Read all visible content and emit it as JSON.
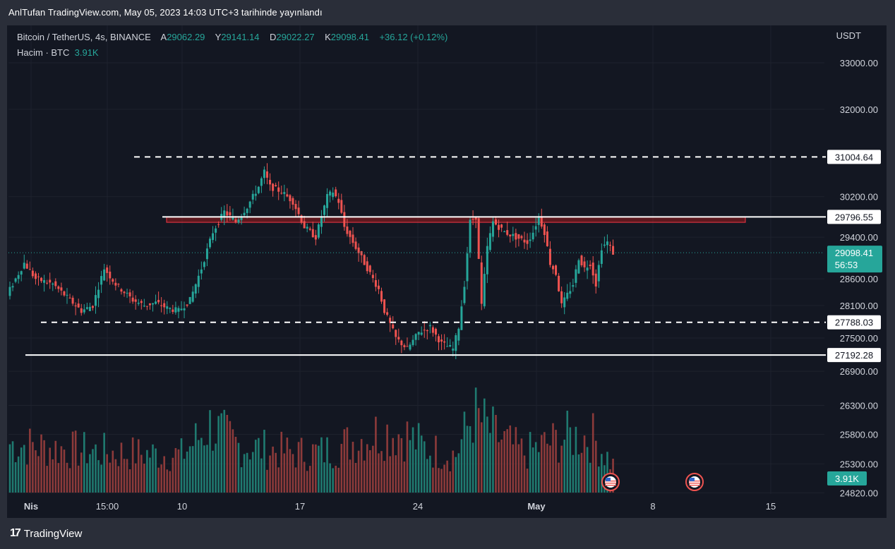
{
  "published": "AnlTufan TradingView.com, May 05, 2023 14:03 UTC+3 tarihinde yayınlandı",
  "legend": {
    "symbol": "Bitcoin / TetherUS, 4s, BINANCE",
    "open_label": "A",
    "open": "29062.29",
    "high_label": "Y",
    "high": "29141.14",
    "low_label": "D",
    "low": "29022.27",
    "close_label": "K",
    "close": "29098.41",
    "change": "+36.12 (+0.12%)",
    "volume_label": "Hacim · BTC",
    "volume": "3.91K"
  },
  "footer_brand": "TradingView",
  "footer_logo": "17",
  "colors": {
    "up": "#26a69a",
    "down": "#ef5350",
    "bg": "#131722",
    "grid": "#1e222d",
    "text": "#d1d4dc",
    "zone": "#b71c1c"
  },
  "chart_data": {
    "type": "candlestick",
    "currency": "USDT",
    "y_scale": "log",
    "ylim": [
      24820,
      33300
    ],
    "y_ticks": [
      "33000.00",
      "32000.00",
      "30200.00",
      "29400.00",
      "28600.00",
      "28100.00",
      "27500.00",
      "26900.00",
      "26300.00",
      "25800.00",
      "25300.00",
      "24820.00"
    ],
    "x_ticks": [
      "Nis",
      "15:00",
      "10",
      "17",
      "24",
      "May",
      "8",
      "15"
    ],
    "levels": [
      {
        "price": 31004.64,
        "label": "31004.64",
        "style": "dashed"
      },
      {
        "price": 29796.55,
        "label": "29796.55",
        "style": "solid"
      },
      {
        "price": 27788.03,
        "label": "27788.03",
        "style": "dashed"
      },
      {
        "price": 27192.28,
        "label": "27192.28",
        "style": "solid"
      }
    ],
    "resistance_zone": {
      "from": 29690,
      "to": 29800
    },
    "current_price": {
      "label": "29098.41",
      "countdown": "56:53"
    },
    "volume_badge": "3.91K",
    "event_icons": 2,
    "price_path": [
      [
        0,
        28300
      ],
      [
        6,
        28900
      ],
      [
        10,
        28600
      ],
      [
        16,
        28500
      ],
      [
        22,
        28200
      ],
      [
        26,
        28000
      ],
      [
        30,
        28100
      ],
      [
        34,
        28800
      ],
      [
        38,
        28500
      ],
      [
        44,
        28200
      ],
      [
        48,
        28100
      ],
      [
        52,
        28150
      ],
      [
        56,
        28050
      ],
      [
        60,
        28000
      ],
      [
        64,
        28200
      ],
      [
        68,
        28800
      ],
      [
        72,
        29500
      ],
      [
        76,
        29900
      ],
      [
        80,
        29700
      ],
      [
        84,
        30000
      ],
      [
        88,
        30400
      ],
      [
        90,
        30700
      ],
      [
        92,
        30400
      ],
      [
        96,
        30300
      ],
      [
        100,
        30100
      ],
      [
        104,
        29600
      ],
      [
        108,
        29400
      ],
      [
        112,
        30200
      ],
      [
        114,
        30300
      ],
      [
        116,
        30100
      ],
      [
        118,
        29600
      ],
      [
        122,
        29200
      ],
      [
        126,
        28800
      ],
      [
        130,
        28400
      ],
      [
        132,
        28000
      ],
      [
        136,
        27500
      ],
      [
        140,
        27300
      ],
      [
        144,
        27600
      ],
      [
        148,
        27700
      ],
      [
        152,
        27400
      ],
      [
        156,
        27300
      ],
      [
        158,
        27700
      ],
      [
        160,
        28500
      ],
      [
        162,
        29700
      ],
      [
        164,
        29800
      ],
      [
        166,
        28100
      ],
      [
        168,
        29200
      ],
      [
        170,
        29700
      ],
      [
        174,
        29500
      ],
      [
        178,
        29400
      ],
      [
        182,
        29300
      ],
      [
        184,
        29500
      ],
      [
        186,
        29800
      ],
      [
        188,
        29500
      ],
      [
        190,
        28900
      ],
      [
        192,
        28700
      ],
      [
        194,
        28100
      ],
      [
        196,
        28300
      ],
      [
        198,
        28500
      ],
      [
        200,
        29000
      ],
      [
        202,
        28800
      ],
      [
        204,
        28900
      ],
      [
        206,
        28500
      ],
      [
        208,
        29200
      ],
      [
        210,
        29300
      ],
      [
        212,
        29100
      ]
    ],
    "volume_path": [
      [
        0,
        0.62
      ],
      [
        20,
        0.55
      ],
      [
        40,
        0.5
      ],
      [
        60,
        0.48
      ],
      [
        70,
        0.85
      ],
      [
        80,
        0.6
      ],
      [
        90,
        0.55
      ],
      [
        100,
        0.5
      ],
      [
        110,
        0.52
      ],
      [
        120,
        0.65
      ],
      [
        130,
        0.78
      ],
      [
        138,
        0.75
      ],
      [
        146,
        0.55
      ],
      [
        156,
        0.48
      ],
      [
        162,
        1.0
      ],
      [
        170,
        0.72
      ],
      [
        180,
        0.5
      ],
      [
        188,
        0.62
      ],
      [
        196,
        0.72
      ],
      [
        204,
        0.7
      ],
      [
        212,
        0.3
      ]
    ]
  }
}
